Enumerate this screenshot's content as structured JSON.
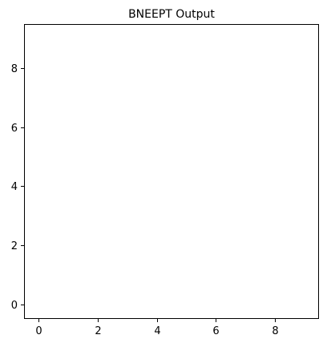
{
  "chart_data": {
    "type": "scatter",
    "title": "BNEEPT Output",
    "xlabel": "",
    "ylabel": "",
    "xlim": [
      -0.5,
      9.5
    ],
    "ylim": [
      -0.5,
      9.5
    ],
    "x_ticks": [
      0,
      2,
      4,
      6,
      8
    ],
    "x_tick_labels": [
      "0",
      "2",
      "4",
      "6",
      "8"
    ],
    "y_ticks": [
      0,
      2,
      4,
      6,
      8
    ],
    "y_tick_labels": [
      "0",
      "2",
      "4",
      "6",
      "8"
    ],
    "grid": false,
    "series": []
  }
}
